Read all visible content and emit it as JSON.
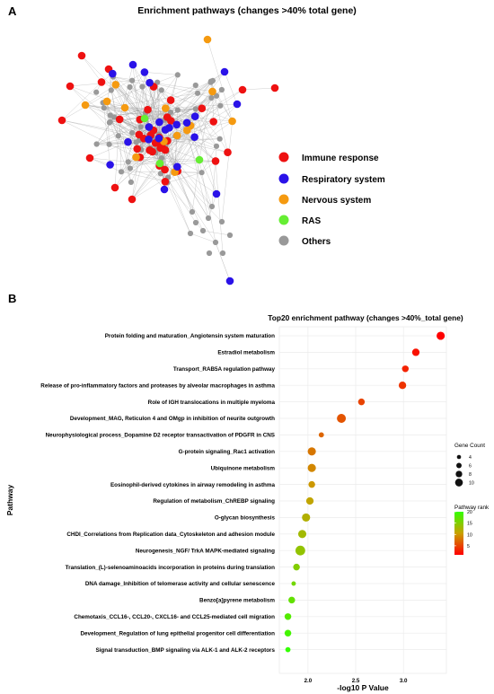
{
  "panel_a": {
    "letter": "A",
    "title": "Enrichment pathways (changes >40% total gene)",
    "legend": [
      {
        "label": "Immune response",
        "color": "#ee1111"
      },
      {
        "label": "Respiratory system",
        "color": "#2a12e8"
      },
      {
        "label": "Nervous system",
        "color": "#f59a10"
      },
      {
        "label": "RAS",
        "color": "#66ee33"
      },
      {
        "label": "Others",
        "color": "#999999"
      }
    ]
  },
  "chart_data": {
    "type": "scatter",
    "panel_letter": "B",
    "title": "Top20 enrichment pathway (changes >40%_total gene)",
    "xlabel": "-log10 P Value",
    "ylabel": "Pathway",
    "xlim": [
      1.7,
      3.45
    ],
    "xticks": [
      2.0,
      2.5,
      3.0
    ],
    "xtick_labels": [
      "2.0",
      "2.5",
      "3.0"
    ],
    "grid": true,
    "pathways": [
      {
        "name": "Protein folding and maturation_Angiotensin system maturation",
        "x": 3.39,
        "count": 8,
        "rank": 1
      },
      {
        "name": "Estradiol metabolism",
        "x": 3.13,
        "count": 7,
        "rank": 2
      },
      {
        "name": "Transport_RAB5A regulation pathway",
        "x": 3.02,
        "count": 6,
        "rank": 3
      },
      {
        "name": "Release of pro-inflammatory factors and proteases by alveolar macrophages in asthma",
        "x": 2.99,
        "count": 7,
        "rank": 4
      },
      {
        "name": "Role of IGH translocations in multiple myeloma",
        "x": 2.56,
        "count": 6,
        "rank": 5
      },
      {
        "name": "Development_MAG, Reticulon 4 and OMgp in inhibition of neurite outgrowth",
        "x": 2.35,
        "count": 9,
        "rank": 6
      },
      {
        "name": "Neurophysiological process_Dopamine D2 receptor transactivation of PDGFR in CNS",
        "x": 2.14,
        "count": 4,
        "rank": 7
      },
      {
        "name": "G-protein signaling_Rac1 activation",
        "x": 2.04,
        "count": 8,
        "rank": 8
      },
      {
        "name": "Ubiquinone metabolism",
        "x": 2.04,
        "count": 8,
        "rank": 9
      },
      {
        "name": "Eosinophil-derived cytokines in airway remodeling in asthma",
        "x": 2.04,
        "count": 6,
        "rank": 10
      },
      {
        "name": "Regulation of metabolism_ChREBP signaling",
        "x": 2.02,
        "count": 7,
        "rank": 11
      },
      {
        "name": "O-glycan biosynthesis",
        "x": 1.98,
        "count": 8,
        "rank": 12
      },
      {
        "name": "CHDI_Correlations from Replication data_Cytoskeleton and adhesion module",
        "x": 1.94,
        "count": 8,
        "rank": 13
      },
      {
        "name": "Neurogenesis_NGF/ TrkA MAPK-mediated signaling",
        "x": 1.92,
        "count": 10,
        "rank": 14
      },
      {
        "name": "Translation_(L)-selenoaminoacids incorporation in proteins during translation",
        "x": 1.88,
        "count": 6,
        "rank": 15
      },
      {
        "name": "DNA damage_Inhibition of telomerase activity and cellular senescence",
        "x": 1.85,
        "count": 3,
        "rank": 16
      },
      {
        "name": "Benzo[a]pyrene metabolism",
        "x": 1.83,
        "count": 6,
        "rank": 17
      },
      {
        "name": "Chemotaxis_CCL16-, CCL20-, CXCL16- and CCL25-mediated cell migration",
        "x": 1.79,
        "count": 6,
        "rank": 18
      },
      {
        "name": "Development_Regulation of lung epithelial progenitor cell differentiation",
        "x": 1.79,
        "count": 6,
        "rank": 19
      },
      {
        "name": "Signal transduction_BMP signaling via ALK-1 and ALK-2 receptors",
        "x": 1.79,
        "count": 4,
        "rank": 20
      }
    ],
    "size_legend": {
      "title": "Gene Count",
      "values": [
        4,
        6,
        8,
        10
      ]
    },
    "color_legend": {
      "title": "Pathway rank",
      "ticks": [
        20,
        15,
        10,
        5
      ],
      "range": [
        1,
        20
      ],
      "low_color": "#ff0000",
      "high_color": "#33ff00"
    }
  }
}
